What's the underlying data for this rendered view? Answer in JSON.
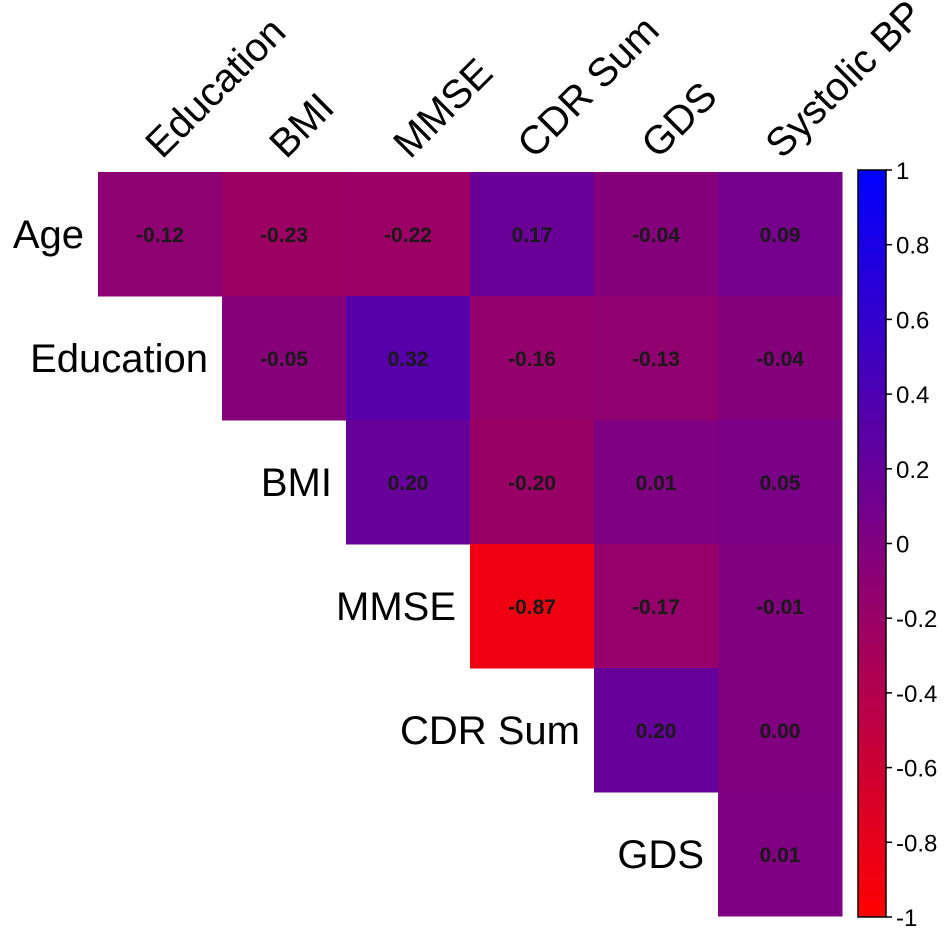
{
  "chart_data": {
    "type": "heatmap",
    "title": "",
    "rows": [
      "Age",
      "Education",
      "BMI",
      "MMSE",
      "CDR Sum",
      "GDS"
    ],
    "columns": [
      "Education",
      "BMI",
      "MMSE",
      "CDR Sum",
      "GDS",
      "Systolic BP"
    ],
    "values": [
      [
        -0.12,
        -0.23,
        -0.22,
        0.17,
        -0.04,
        0.09
      ],
      [
        null,
        -0.05,
        0.32,
        -0.16,
        -0.13,
        -0.04
      ],
      [
        null,
        null,
        0.2,
        -0.2,
        0.01,
        0.05
      ],
      [
        null,
        null,
        null,
        -0.87,
        -0.17,
        -0.01
      ],
      [
        null,
        null,
        null,
        null,
        0.2,
        0.0
      ],
      [
        null,
        null,
        null,
        null,
        null,
        0.01
      ]
    ],
    "value_labels": [
      [
        "-0.12",
        "-0.23",
        "-0.22",
        "0.17",
        "-0.04",
        "0.09"
      ],
      [
        null,
        "-0.05",
        "0.32",
        "-0.16",
        "-0.13",
        "-0.04"
      ],
      [
        null,
        null,
        "0.20",
        "-0.20",
        "0.01",
        "0.05"
      ],
      [
        null,
        null,
        null,
        "-0.87",
        "-0.17",
        "-0.01"
      ],
      [
        null,
        null,
        null,
        null,
        "0.20",
        "0.00"
      ],
      [
        null,
        null,
        null,
        null,
        null,
        "0.01"
      ]
    ],
    "layout": "upper-triangle",
    "colorbar": {
      "range": [
        -1,
        1
      ],
      "ticks": [
        1,
        0.8,
        0.6,
        0.4,
        0.2,
        0,
        -0.2,
        -0.4,
        -0.6,
        -0.8,
        -1
      ],
      "tick_labels": [
        "1",
        "0.8",
        "0.6",
        "0.4",
        "0.2",
        "0",
        "-0.2",
        "-0.4",
        "-0.6",
        "-0.8",
        "-1"
      ],
      "color_low": "#ff0000",
      "color_mid": "#800080",
      "color_high": "#0000ff"
    },
    "legend_placement": "right"
  }
}
